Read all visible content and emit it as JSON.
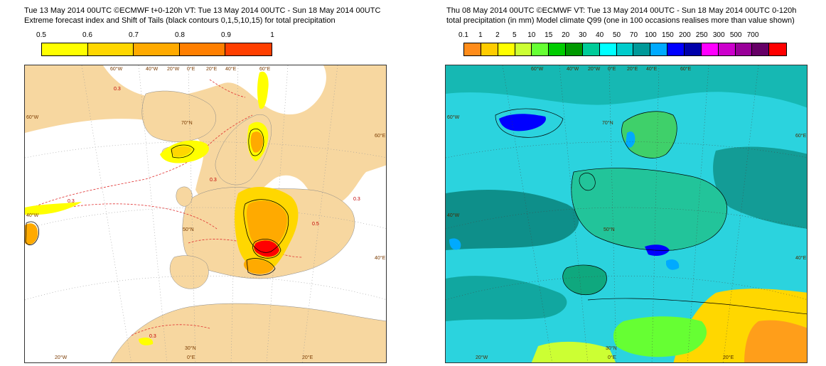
{
  "left_panel": {
    "title_line1": "Tue 13 May 2014 00UTC ©ECMWF t+0-120h  VT: Tue 13 May 2014 00UTC - Sun 18 May 2014 00UTC",
    "title_line2": "Extreme forecast index and Shift of Tails (black contours 0,1,5,10,15) for total precipitation",
    "legend": {
      "labels": [
        "0.5",
        "0.6",
        "0.7",
        "0.8",
        "0.9",
        "1"
      ],
      "colors": [
        "#ffff00",
        "#ffd700",
        "#ffaa00",
        "#ff7f00",
        "#ff3f00",
        "#ff0000"
      ]
    },
    "grid_labels": {
      "lon_top": [
        "60°W",
        "40°W",
        "20°W",
        "0°E",
        "20°E",
        "40°E",
        "60°E"
      ],
      "lon_bottom": [
        "20°W",
        "0°E",
        "20°E"
      ],
      "lat_left": [
        "60°W",
        "40°W"
      ],
      "lat_right": [
        "60°E",
        "40°E"
      ],
      "lat_inner": [
        "70°N",
        "50°N",
        "30°N"
      ]
    },
    "contour_labels": [
      "0.3",
      "0.3",
      "0.3",
      "0.3",
      "0.3",
      "0.5"
    ]
  },
  "right_panel": {
    "title_line1": "Thu 08 May 2014 00UTC ©ECMWF VT: Tue 13 May 2014 00UTC - Sun 18 May 2014 00UTC   0-120h",
    "title_line2": "total precipitation (in mm)  Model climate Q99 (one in 100 occasions realises more than value shown)",
    "legend": {
      "labels": [
        "0.1",
        "1",
        "2",
        "5",
        "10",
        "15",
        "20",
        "30",
        "40",
        "50",
        "70",
        "100",
        "150",
        "200",
        "250",
        "300",
        "500",
        "700"
      ],
      "colors": [
        "#ff8c1a",
        "#ffcc00",
        "#ffff00",
        "#ccff33",
        "#66ff33",
        "#00cc00",
        "#009900",
        "#00cc99",
        "#00ffff",
        "#00cccc",
        "#009999",
        "#00aaff",
        "#0000ff",
        "#0000aa",
        "#ff00ff",
        "#cc00cc",
        "#990099",
        "#660066",
        "#ff0000"
      ]
    },
    "grid_labels": {
      "lon_top": [
        "60°W",
        "40°W",
        "20°W",
        "0°E",
        "20°E",
        "40°E",
        "60°E"
      ],
      "lon_bottom": [
        "20°W",
        "0°E",
        "20°E"
      ],
      "lat_left": [
        "60°W",
        "40°W"
      ],
      "lat_right": [
        "60°E",
        "40°E"
      ],
      "lat_inner": [
        "70°N",
        "50°N",
        "30°N"
      ]
    }
  }
}
